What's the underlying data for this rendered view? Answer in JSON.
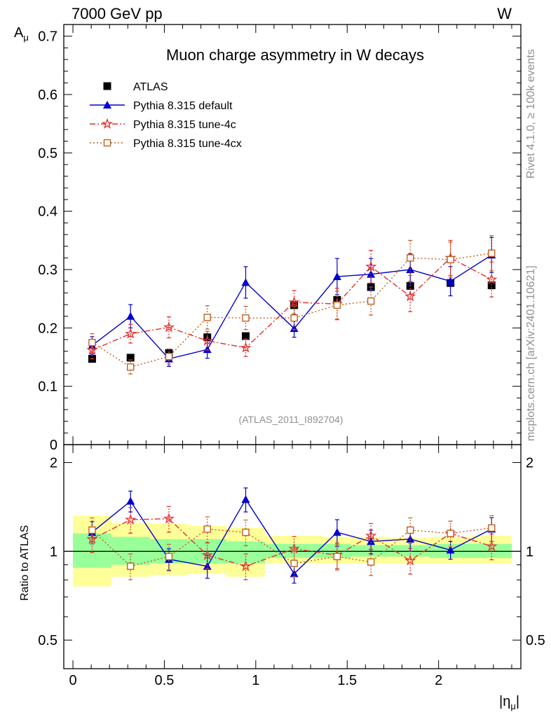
{
  "header": {
    "left": "7000 GeV pp",
    "right": "W"
  },
  "side": {
    "rivet": "Rivet 4.1.0, ≥ 100k events",
    "mcplots": "mcplots.cern.ch [arXiv:2401.10621]"
  },
  "analysis_id": "(ATLAS_2011_I892704)",
  "colors": {
    "atlas": "#000000",
    "default": "#0000cc",
    "tune4c": "#e03030",
    "tune4cx": "#c06020",
    "band_inner": "#99ff99",
    "band_outer": "#ffff99",
    "watermark": "#909090"
  },
  "chart_data": [
    {
      "type": "scatter",
      "title": "Muon charge asymmetry in W decays",
      "xlabel": "|η_μ|",
      "ylabel": "A_μ",
      "xlim": [
        -0.05,
        2.45
      ],
      "ylim": [
        0,
        0.72
      ],
      "yticks": [
        0,
        0.1,
        0.2,
        0.3,
        0.4,
        0.5,
        0.6,
        0.7
      ],
      "ytick_labels": [
        "0",
        "0.1",
        "0.2",
        "0.3",
        "0.4",
        "0.5",
        "0.6",
        "0.7"
      ],
      "bins": [
        [
          0.0,
          0.21
        ],
        [
          0.21,
          0.42
        ],
        [
          0.42,
          0.63
        ],
        [
          0.63,
          0.84
        ],
        [
          0.84,
          1.05
        ],
        [
          1.05,
          1.37
        ],
        [
          1.37,
          1.52
        ],
        [
          1.52,
          1.74
        ],
        [
          1.74,
          1.95
        ],
        [
          1.95,
          2.18
        ],
        [
          2.18,
          2.4
        ]
      ],
      "x": [
        0.105,
        0.315,
        0.525,
        0.735,
        0.945,
        1.21,
        1.445,
        1.63,
        1.845,
        2.065,
        2.29
      ],
      "legend": [
        "ATLAS",
        "Pythia 8.315 default",
        "Pythia 8.315 tune-4c",
        "Pythia 8.315 tune-4cx"
      ],
      "series": [
        {
          "name": "ATLAS",
          "marker": "square",
          "values": [
            0.147,
            0.149,
            0.157,
            0.184,
            0.186,
            0.239,
            0.248,
            0.27,
            0.272,
            0.277,
            0.273
          ],
          "errors": [
            0.004,
            0.004,
            0.004,
            0.004,
            0.004,
            0.004,
            0.004,
            0.004,
            0.004,
            0.005,
            0.006
          ]
        },
        {
          "name": "Pythia 8.315 default",
          "marker": "triangle",
          "values": [
            0.17,
            0.22,
            0.147,
            0.163,
            0.278,
            0.199,
            0.288,
            0.292,
            0.3,
            0.28,
            0.325
          ],
          "errors": [
            0.015,
            0.02,
            0.013,
            0.015,
            0.027,
            0.015,
            0.031,
            0.027,
            0.027,
            0.025,
            0.03
          ]
        },
        {
          "name": "Pythia 8.315 tune-4c",
          "marker": "star",
          "values": [
            0.162,
            0.19,
            0.201,
            0.178,
            0.166,
            0.244,
            0.241,
            0.305,
            0.254,
            0.32,
            0.283
          ],
          "errors": [
            0.015,
            0.016,
            0.018,
            0.016,
            0.015,
            0.02,
            0.027,
            0.028,
            0.026,
            0.03,
            0.03
          ]
        },
        {
          "name": "Pythia 8.315 tune-4cx",
          "marker": "open-square",
          "values": [
            0.175,
            0.133,
            0.151,
            0.218,
            0.217,
            0.217,
            0.239,
            0.246,
            0.32,
            0.317,
            0.328
          ],
          "errors": [
            0.015,
            0.012,
            0.013,
            0.02,
            0.02,
            0.02,
            0.024,
            0.024,
            0.03,
            0.03,
            0.03
          ]
        }
      ]
    },
    {
      "type": "scatter",
      "title": "",
      "xlabel": "|η_μ|",
      "ylabel": "Ratio to ATLAS",
      "xlim": [
        -0.05,
        2.45
      ],
      "ylim": [
        0.4,
        2.3
      ],
      "log_y": true,
      "yticks": [
        0.5,
        1,
        2
      ],
      "ytick_labels": [
        "0.5",
        "1",
        "2"
      ],
      "xticks": [
        0,
        0.5,
        1,
        1.5,
        2
      ],
      "xtick_labels": [
        "0",
        "0.5",
        "1",
        "1.5",
        "2"
      ],
      "band_inner": [
        [
          0.88,
          1.15
        ],
        [
          0.9,
          1.12
        ],
        [
          0.91,
          1.1
        ],
        [
          0.91,
          1.1
        ],
        [
          0.91,
          1.08
        ],
        [
          0.95,
          1.06
        ],
        [
          0.95,
          1.06
        ],
        [
          0.96,
          1.05
        ],
        [
          0.96,
          1.05
        ],
        [
          0.95,
          1.06
        ],
        [
          0.95,
          1.06
        ]
      ],
      "band_outer": [
        [
          0.76,
          1.32
        ],
        [
          0.82,
          1.25
        ],
        [
          0.83,
          1.24
        ],
        [
          0.84,
          1.22
        ],
        [
          0.82,
          1.2
        ],
        [
          0.91,
          1.13
        ],
        [
          0.91,
          1.12
        ],
        [
          0.91,
          1.12
        ],
        [
          0.91,
          1.11
        ],
        [
          0.91,
          1.12
        ],
        [
          0.91,
          1.13
        ]
      ],
      "series": [
        {
          "name": "Pythia 8.315 default",
          "values": [
            1.16,
            1.48,
            0.94,
            0.89,
            1.5,
            0.84,
            1.16,
            1.08,
            1.1,
            1.01,
            1.19
          ],
          "errors": [
            0.1,
            0.12,
            0.08,
            0.08,
            0.14,
            0.06,
            0.12,
            0.1,
            0.1,
            0.07,
            0.11
          ]
        },
        {
          "name": "Pythia 8.315 tune-4c",
          "values": [
            1.1,
            1.28,
            1.29,
            0.97,
            0.89,
            1.02,
            0.97,
            1.13,
            0.93,
            1.15,
            1.04
          ]
        },
        {
          "name": "Pythia 8.315 tune-4cx",
          "values": [
            1.18,
            0.89,
            0.96,
            1.19,
            1.16,
            0.91,
            0.96,
            0.92,
            1.18,
            1.15,
            1.2
          ]
        }
      ]
    }
  ]
}
